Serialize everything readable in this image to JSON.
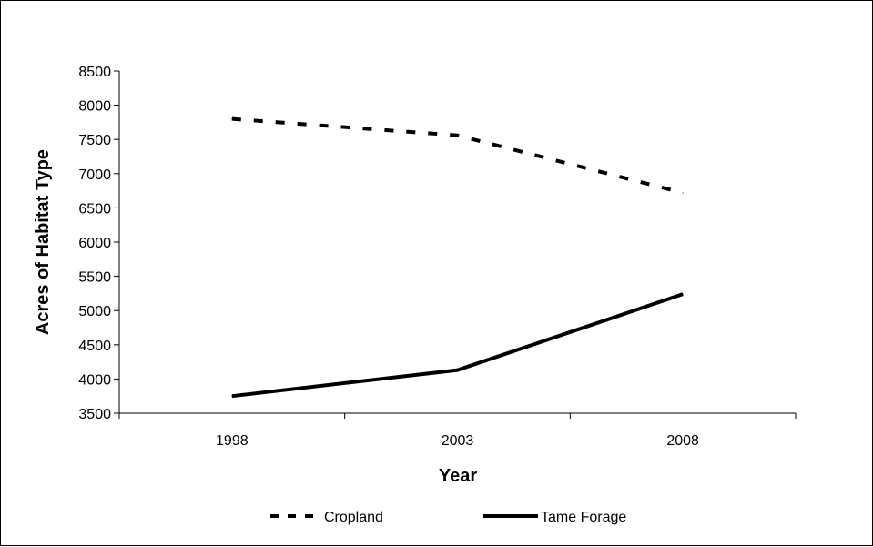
{
  "chart_data": {
    "type": "line",
    "title": "",
    "xlabel": "Year",
    "ylabel": "Acres of Habitat Type",
    "categories": [
      "1998",
      "2003",
      "2008"
    ],
    "ylim": [
      3500,
      8500
    ],
    "yticks": [
      3500,
      4000,
      4500,
      5000,
      5500,
      6000,
      6500,
      7000,
      7500,
      8000,
      8500
    ],
    "grid": false,
    "legend_position": "bottom",
    "series": [
      {
        "name": "Cropland",
        "values": [
          7800,
          7560,
          6720
        ],
        "style": "dashed",
        "color": "#000000"
      },
      {
        "name": "Tame Forage",
        "values": [
          3750,
          4130,
          5240
        ],
        "style": "solid",
        "color": "#000000"
      }
    ]
  }
}
